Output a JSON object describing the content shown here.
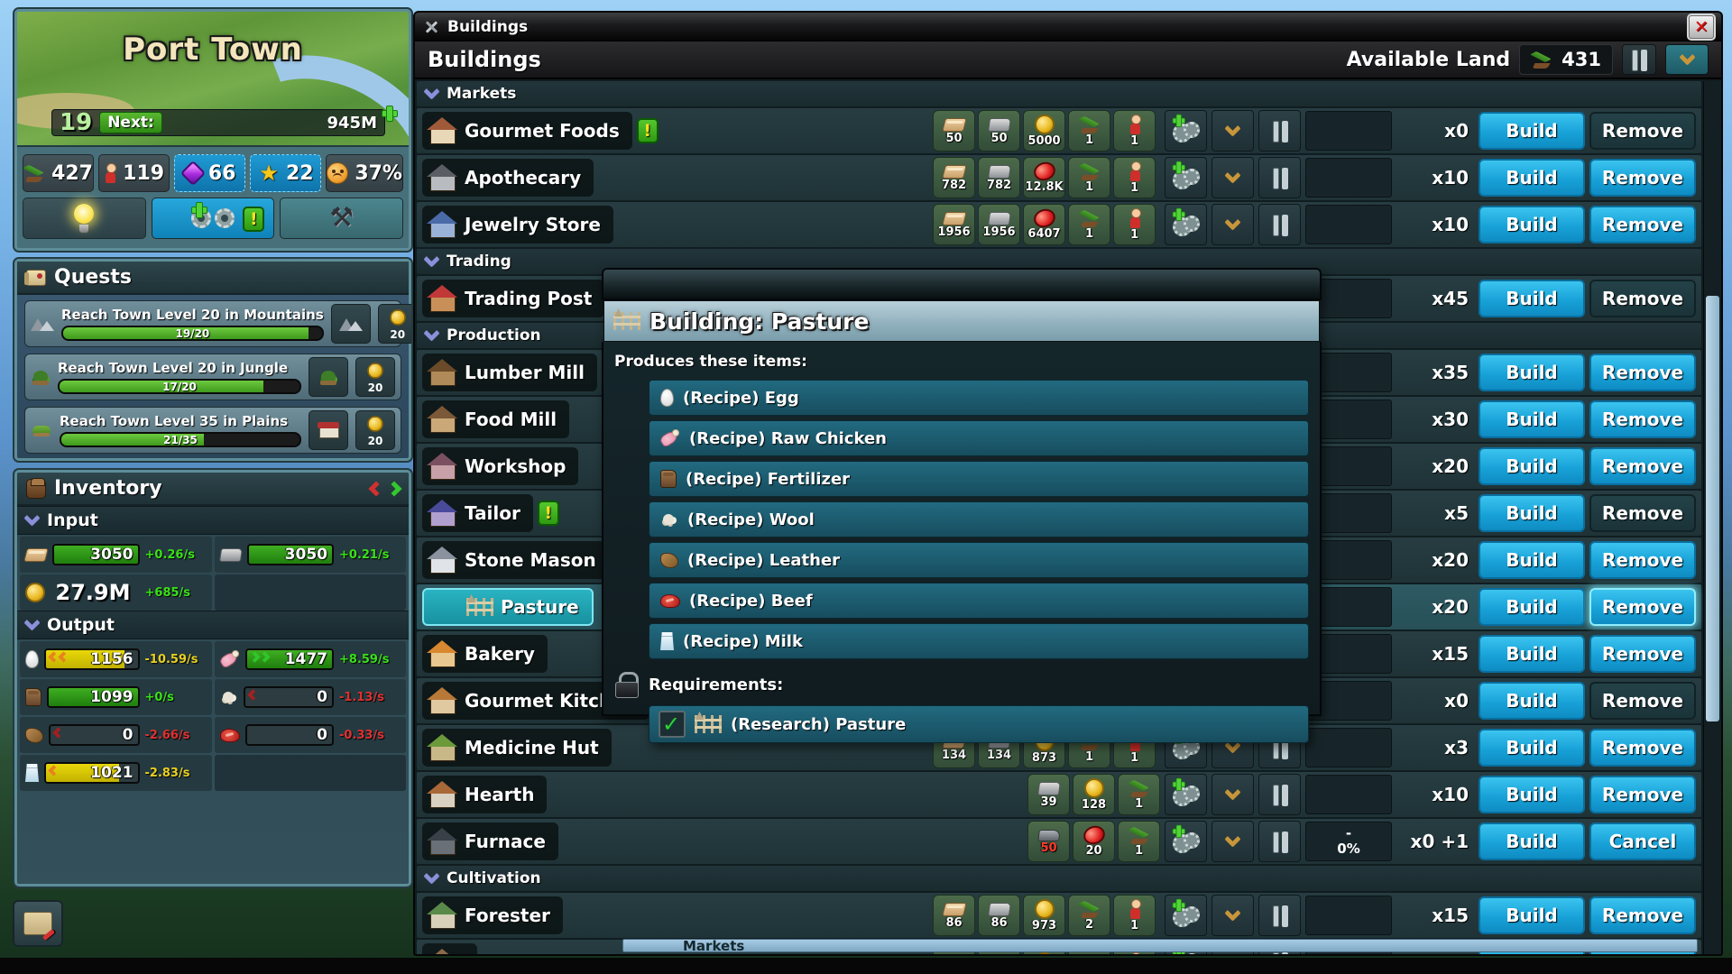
{
  "town": {
    "name": "Port Town",
    "level": "19",
    "next_label": "Next:",
    "next_value": "945M"
  },
  "resources": [
    {
      "icon": "land",
      "value": "427",
      "style": "dark"
    },
    {
      "icon": "person",
      "value": "119",
      "style": "dark"
    },
    {
      "icon": "gem",
      "value": "66",
      "style": "blue"
    },
    {
      "icon": "star",
      "value": "22",
      "style": "blue"
    },
    {
      "icon": "sad-face",
      "value": "37%",
      "style": "dark"
    }
  ],
  "action_buttons": [
    {
      "icon": "lightbulb",
      "style": "dark",
      "name": "research-button"
    },
    {
      "icon": "gears",
      "style": "blue",
      "badge": "!",
      "plus": true,
      "name": "production-button"
    },
    {
      "icon": "hammer-axe",
      "style": "teal",
      "name": "crafting-button"
    }
  ],
  "quests": {
    "title": "Quests",
    "items": [
      {
        "icon": "mountains",
        "title": "Reach Town Level 20 in Mountains",
        "progress_text": "19/20",
        "progress_pct": 95,
        "reward_icon": "mountains",
        "coin_value": "20"
      },
      {
        "icon": "jungle",
        "title": "Reach Town Level 20 in Jungle",
        "progress_text": "17/20",
        "progress_pct": 85,
        "reward_icon": "jungle",
        "coin_value": "20"
      },
      {
        "icon": "plains",
        "title": "Reach Town Level 35 in Plains",
        "progress_text": "21/35",
        "progress_pct": 60,
        "reward_icon": "building-reward",
        "coin_value": "20"
      }
    ]
  },
  "inventory": {
    "title": "Inventory",
    "sections": [
      {
        "label": "Input",
        "rows": [
          [
            {
              "icon": "wood",
              "value": "3050",
              "rate": "+0.26/s",
              "rate_color": "green",
              "bar": "green",
              "fill_pct": 100
            },
            {
              "icon": "stone",
              "value": "3050",
              "rate": "+0.21/s",
              "rate_color": "green",
              "bar": "green",
              "fill_pct": 100
            }
          ],
          [
            {
              "icon": "coin",
              "value": "27.9M",
              "rate": "+685/s",
              "rate_color": "green",
              "bar": "none"
            }
          ]
        ]
      },
      {
        "label": "Output",
        "rows": [
          [
            {
              "icon": "egg",
              "value": "1156",
              "rate": "-10.59/s",
              "rate_color": "yellow",
              "bar": "yellow",
              "fill_pct": 86,
              "arrows": "left2"
            },
            {
              "icon": "chicken",
              "value": "1477",
              "rate": "+8.59/s",
              "rate_color": "green",
              "bar": "green",
              "fill_pct": 100,
              "arrows": "right2"
            }
          ],
          [
            {
              "icon": "fertilizer",
              "value": "1099",
              "rate": "+0/s",
              "rate_color": "green",
              "bar": "green",
              "fill_pct": 100
            },
            {
              "icon": "wool",
              "value": "0",
              "rate": "-1.13/s",
              "rate_color": "red",
              "bar": "empty",
              "fill_pct": 0,
              "arrows": "left1dark"
            }
          ],
          [
            {
              "icon": "leather",
              "value": "0",
              "rate": "-2.66/s",
              "rate_color": "red",
              "bar": "empty",
              "fill_pct": 0,
              "arrows": "left1dark"
            },
            {
              "icon": "beef",
              "value": "0",
              "rate": "-0.33/s",
              "rate_color": "red",
              "bar": "empty",
              "fill_pct": 0
            }
          ],
          [
            {
              "icon": "milk",
              "value": "1021",
              "rate": "-2.83/s",
              "rate_color": "yellow",
              "bar": "yellow",
              "fill_pct": 80,
              "arrows": "left1"
            }
          ]
        ]
      }
    ]
  },
  "window": {
    "title": "Buildings",
    "subtitle": "Buildings",
    "available_land_label": "Available Land",
    "available_land_value": "431",
    "close_label": "✕",
    "footer_section": "Markets"
  },
  "buildings": [
    {
      "type": "section",
      "label": "Markets"
    },
    {
      "type": "building",
      "name": "Gourmet Foods",
      "icon": "market",
      "badge": "!",
      "count": "x0",
      "build_label": "Build",
      "remove_label": "Remove",
      "remove_enabled": false,
      "costs": [
        {
          "icon": "wood",
          "value": "50"
        },
        {
          "icon": "stone",
          "value": "50"
        },
        {
          "icon": "coin",
          "value": "5000"
        },
        {
          "icon": "land",
          "value": "1"
        },
        {
          "icon": "person",
          "value": "1"
        }
      ]
    },
    {
      "type": "building",
      "name": "Apothecary",
      "icon": "apothecary",
      "count": "x10",
      "build_label": "Build",
      "remove_label": "Remove",
      "remove_enabled": true,
      "costs": [
        {
          "icon": "wood",
          "value": "782"
        },
        {
          "icon": "stone",
          "value": "782"
        },
        {
          "icon": "redcoin",
          "value": "12.8K"
        },
        {
          "icon": "land",
          "value": "1"
        },
        {
          "icon": "person",
          "value": "1"
        }
      ]
    },
    {
      "type": "building",
      "name": "Jewelry Store",
      "icon": "jewelry",
      "count": "x10",
      "build_label": "Build",
      "remove_label": "Remove",
      "remove_enabled": true,
      "costs": [
        {
          "icon": "wood",
          "value": "1956"
        },
        {
          "icon": "stone",
          "value": "1956"
        },
        {
          "icon": "redcoin",
          "value": "6407"
        },
        {
          "icon": "land",
          "value": "1"
        },
        {
          "icon": "person",
          "value": "1"
        }
      ]
    },
    {
      "type": "section",
      "label": "Trading"
    },
    {
      "type": "building",
      "name": "Trading Post",
      "icon": "trading-post",
      "count": "x45",
      "build_label": "Build",
      "remove_label": "Remove",
      "remove_enabled": false,
      "costs": null
    },
    {
      "type": "section",
      "label": "Production"
    },
    {
      "type": "building",
      "name": "Lumber Mill",
      "icon": "lumber-mill",
      "count": "x35",
      "build_label": "Build",
      "remove_label": "Remove",
      "remove_enabled": true,
      "costs": null
    },
    {
      "type": "building",
      "name": "Food Mill",
      "icon": "food-mill",
      "count": "x30",
      "build_label": "Build",
      "remove_label": "Remove",
      "remove_enabled": true,
      "costs": null
    },
    {
      "type": "building",
      "name": "Workshop",
      "icon": "workshop",
      "count": "x20",
      "build_label": "Build",
      "remove_label": "Remove",
      "remove_enabled": true,
      "costs": null
    },
    {
      "type": "building",
      "name": "Tailor",
      "icon": "tailor",
      "badge": "!",
      "count": "x5",
      "build_label": "Build",
      "remove_label": "Remove",
      "remove_enabled": false,
      "costs": null
    },
    {
      "type": "building",
      "name": "Stone Mason",
      "icon": "stone-mason",
      "count": "x20",
      "build_label": "Build",
      "remove_label": "Remove",
      "remove_enabled": true,
      "costs": null
    },
    {
      "type": "building",
      "name": "Pasture",
      "icon": "pasture",
      "selected": true,
      "count": "x20",
      "build_label": "Build",
      "remove_label": "Remove",
      "remove_enabled": true,
      "costs": null
    },
    {
      "type": "building",
      "name": "Bakery",
      "icon": "bakery",
      "count": "x15",
      "build_label": "Build",
      "remove_label": "Remove",
      "remove_enabled": true,
      "costs": null
    },
    {
      "type": "building",
      "name": "Gourmet Kitchen",
      "icon": "gourmet-kitchen",
      "count": "x0",
      "build_label": "Build",
      "remove_label": "Remove",
      "remove_enabled": false,
      "costs": null
    },
    {
      "type": "building",
      "name": "Medicine Hut",
      "icon": "medicine-hut",
      "count": "x3",
      "build_label": "Build",
      "remove_label": "Remove",
      "remove_enabled": true,
      "costs": [
        {
          "icon": "wood",
          "value": "134"
        },
        {
          "icon": "stone",
          "value": "134"
        },
        {
          "icon": "coin",
          "value": "873"
        },
        {
          "icon": "land",
          "value": "1"
        },
        {
          "icon": "person",
          "value": "1"
        }
      ]
    },
    {
      "type": "building",
      "name": "Hearth",
      "icon": "hearth",
      "count": "x10",
      "build_label": "Build",
      "remove_label": "Remove",
      "remove_enabled": true,
      "costs": [
        {
          "icon": "stone",
          "value": "39"
        },
        {
          "icon": "coin",
          "value": "128"
        },
        {
          "icon": "land",
          "value": "1"
        }
      ]
    },
    {
      "type": "building",
      "name": "Furnace",
      "icon": "furnace",
      "count": "x0 +1",
      "build_label": "Build",
      "remove_label": "Cancel",
      "remove_enabled": true,
      "status_top": "-",
      "status_bottom": "0%",
      "costs": [
        {
          "icon": "iron",
          "value": "50",
          "red": true
        },
        {
          "icon": "redcoin",
          "value": "20"
        },
        {
          "icon": "land",
          "value": "1"
        }
      ]
    },
    {
      "type": "section",
      "label": "Cultivation"
    },
    {
      "type": "building",
      "name": "Forester",
      "icon": "forester",
      "count": "x15",
      "build_label": "Build",
      "remove_label": "Remove",
      "remove_enabled": true,
      "costs": [
        {
          "icon": "wood",
          "value": "86"
        },
        {
          "icon": "stone",
          "value": "86"
        },
        {
          "icon": "coin",
          "value": "973"
        },
        {
          "icon": "land",
          "value": "2"
        },
        {
          "icon": "person",
          "value": "1"
        }
      ]
    },
    {
      "type": "building",
      "name": "",
      "icon": "generic",
      "partial": true,
      "count": "",
      "build_label": "Build",
      "remove_label": "Remove",
      "remove_enabled": true,
      "costs": [
        {
          "icon": "wood",
          "value": ""
        },
        {
          "icon": "stone",
          "value": ""
        },
        {
          "icon": "coin",
          "value": ""
        },
        {
          "icon": "land",
          "value": ""
        },
        {
          "icon": "person",
          "value": ""
        }
      ]
    }
  ],
  "popup": {
    "title": "Building: Pasture",
    "icon": "fence",
    "produces_label": "Produces these items:",
    "recipes": [
      {
        "icon": "egg",
        "label": "(Recipe) Egg"
      },
      {
        "icon": "chicken",
        "label": "(Recipe) Raw Chicken"
      },
      {
        "icon": "fertilizer",
        "label": "(Recipe) Fertilizer"
      },
      {
        "icon": "wool",
        "label": "(Recipe) Wool"
      },
      {
        "icon": "leather",
        "label": "(Recipe) Leather"
      },
      {
        "icon": "beef",
        "label": "(Recipe) Beef"
      },
      {
        "icon": "milk",
        "label": "(Recipe) Milk"
      }
    ],
    "requirements_label": "Requirements:",
    "requirements": [
      {
        "icon": "fence",
        "label": "(Research) Pasture",
        "checked": true
      }
    ]
  }
}
